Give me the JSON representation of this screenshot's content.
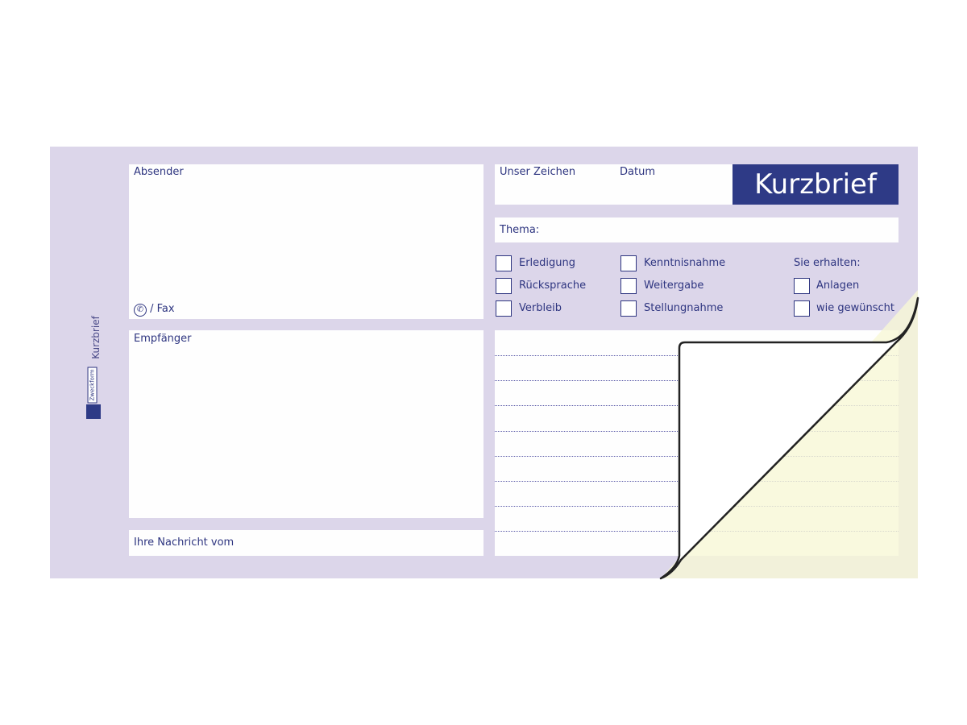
{
  "sender": {
    "label": "Absender",
    "phone_fax": "/ Fax",
    "phone_icon": "phone-icon"
  },
  "recipient": {
    "label": "Empfänger"
  },
  "your_message": {
    "label": "Ihre Nachricht vom"
  },
  "header": {
    "our_ref": "Unser Zeichen",
    "date": "Datum",
    "title": "Kurzbrief"
  },
  "subject": {
    "label": "Thema:"
  },
  "checkboxes": {
    "col1": [
      "Erledigung",
      "Rücksprache",
      "Verbleib"
    ],
    "col2": [
      "Kenntnisnahme",
      "Weitergabe",
      "Stellungnahme"
    ],
    "col3_heading": "Sie erhalten:",
    "col3": [
      "Anlagen",
      "wie gewünscht"
    ]
  },
  "spine": {
    "title": "Kurzbrief",
    "brand": "Zweckform"
  },
  "colors": {
    "form": "#dcd6ea",
    "text": "#2e3580",
    "title_bg": "#2e3a86",
    "copy_sheet": "#f8f8d8"
  }
}
